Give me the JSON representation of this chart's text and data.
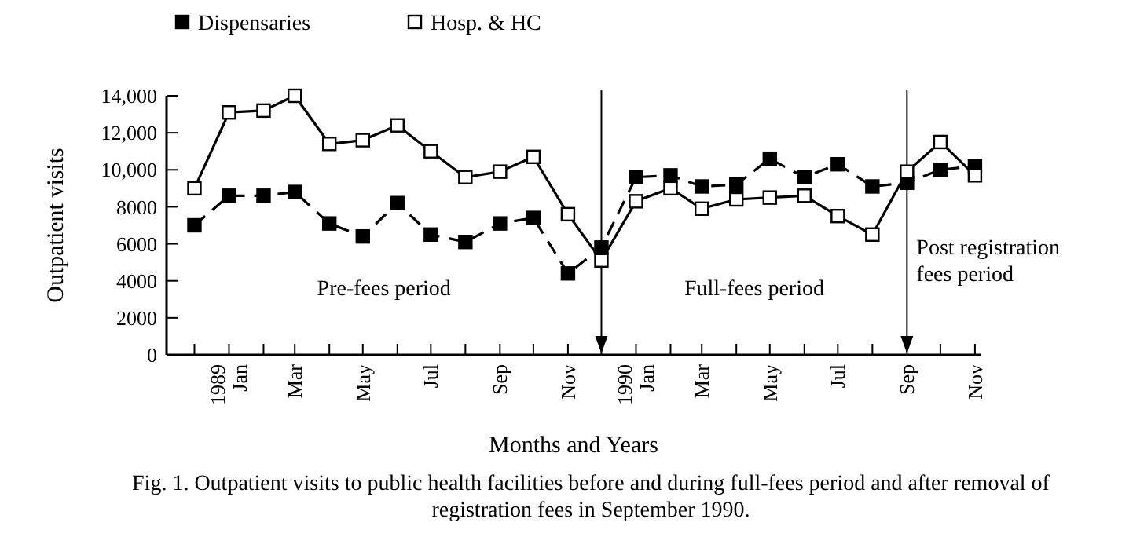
{
  "chart_data": {
    "type": "line",
    "title": "Fig. 1. Outpatient visits to public health facilities before and during full-fees period and after removal of registration fees in September 1990.",
    "xlabel": "Months and Years",
    "ylabel": "Outpatient visits",
    "x": [
      "1988-12",
      "1989-01",
      "1989-02",
      "1989-03",
      "1989-04",
      "1989-05",
      "1989-06",
      "1989-07",
      "1989-08",
      "1989-09",
      "1989-10",
      "1989-11",
      "1989-12",
      "1990-01",
      "1990-02",
      "1990-03",
      "1990-04",
      "1990-05",
      "1990-06",
      "1990-07",
      "1990-08",
      "1990-09",
      "1990-10",
      "1990-11"
    ],
    "xlim": [
      "1988-11-06",
      "1990-11-06"
    ],
    "xticks": [
      {
        "value": "1988-12",
        "label": null
      },
      {
        "value": "1989-01",
        "label": "1989 Jan"
      },
      {
        "value": "1989-02",
        "label": null
      },
      {
        "value": "1989-03",
        "label": "Mar"
      },
      {
        "value": "1989-04",
        "label": null
      },
      {
        "value": "1989-05",
        "label": "May"
      },
      {
        "value": "1989-06",
        "label": null
      },
      {
        "value": "1989-07",
        "label": "Jul"
      },
      {
        "value": "1989-08",
        "label": null
      },
      {
        "value": "1989-09",
        "label": "Sep"
      },
      {
        "value": "1989-10",
        "label": null
      },
      {
        "value": "1989-11",
        "label": "Nov"
      },
      {
        "value": "1989-12",
        "label": null
      },
      {
        "value": "1990-01",
        "label": "1990 Jan"
      },
      {
        "value": "1990-02",
        "label": null
      },
      {
        "value": "1990-03",
        "label": "Mar"
      },
      {
        "value": "1990-04",
        "label": null
      },
      {
        "value": "1990-05",
        "label": "May"
      },
      {
        "value": "1990-06",
        "label": null
      },
      {
        "value": "1990-07",
        "label": "Jul"
      },
      {
        "value": "1990-08",
        "label": null
      },
      {
        "value": "1990-09",
        "label": "Sep"
      },
      {
        "value": "1990-10",
        "label": null
      },
      {
        "value": "1990-11",
        "label": "Nov"
      }
    ],
    "series": [
      {
        "name": "Dispensaries",
        "color": "#000000",
        "line_style": "dashed",
        "values": [
          7000,
          8600,
          8600,
          8800,
          7100,
          6400,
          8200,
          6500,
          6100,
          7100,
          7400,
          4400,
          5800,
          9600,
          9700,
          9100,
          9200,
          10600,
          9600,
          10300,
          9100,
          9300,
          10000,
          10200
        ]
      },
      {
        "name": "Hosp. & HC",
        "color": "#000000",
        "line_style": "solid",
        "values": [
          9000,
          13100,
          13200,
          14000,
          11400,
          11600,
          12400,
          11000,
          9600,
          9900,
          10700,
          7600,
          5100,
          8300,
          9000,
          7900,
          8400,
          8500,
          8600,
          7500,
          6500,
          9900,
          11500,
          9700
        ]
      }
    ],
    "ylim": [
      0,
      14000
    ],
    "yticks": [
      0,
      2000,
      4000,
      6000,
      8000,
      {
        "value": 10000,
        "label": "10,000"
      },
      {
        "value": 12000,
        "label": "12,000"
      },
      {
        "value": 14000,
        "label": "14,000"
      }
    ],
    "ref_lines": [
      {
        "axis": "x",
        "value": "1989-12"
      },
      {
        "axis": "x",
        "value": "1990-09"
      }
    ],
    "annotations": [
      "Pre-fees period",
      "Full-fees period",
      "Post registration fees period"
    ],
    "marker": "square",
    "legend": "top left"
  }
}
